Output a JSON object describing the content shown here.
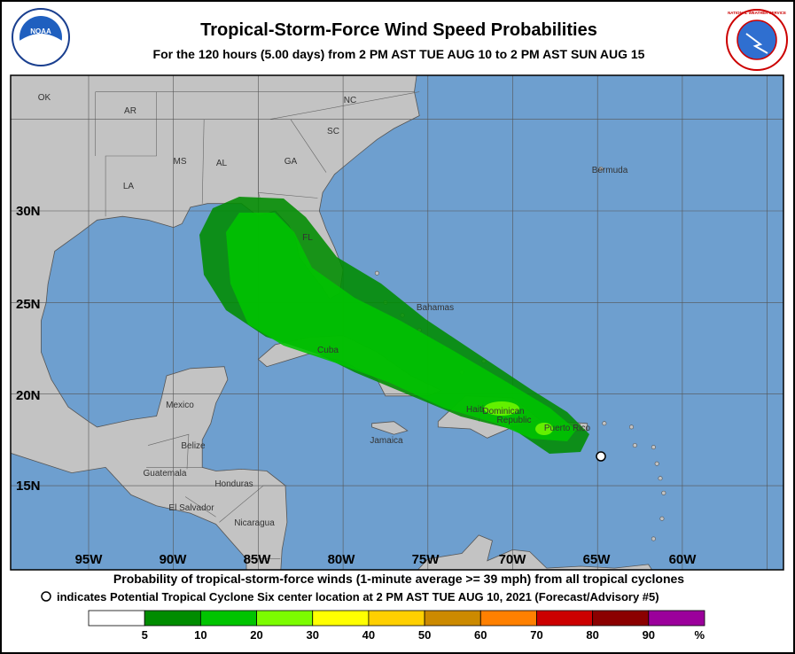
{
  "header": {
    "title": "Tropical-Storm-Force Wind Speed Probabilities",
    "subtitle": "For the 120 hours (5.00 days) from 2 PM AST TUE AUG 10 to 2 PM AST SUN AUG 15",
    "left_logo": "NOAA",
    "right_logo": "NATIONAL WEATHER SERVICE"
  },
  "map": {
    "latitude_labels": [
      "30N",
      "25N",
      "20N",
      "15N"
    ],
    "longitude_labels": [
      "95W",
      "90W",
      "85W",
      "80W",
      "75W",
      "70W",
      "65W",
      "60W"
    ],
    "place_labels": [
      "OK",
      "AR",
      "NC",
      "SC",
      "MS",
      "AL",
      "GA",
      "LA",
      "FL",
      "Bermuda",
      "Bahamas",
      "Cuba",
      "Mexico",
      "Haiti",
      "Dominican",
      "Republic",
      "Puerto Rico",
      "Jamaica",
      "Belize",
      "Guatemala",
      "Honduras",
      "El Salvador",
      "Nicaragua"
    ]
  },
  "caption": {
    "line1": "Probability of tropical-storm-force winds (1-minute average >= 39 mph) from all tropical cyclones",
    "line2": "indicates Potential Tropical Cyclone Six center location at 2 PM AST TUE AUG 10, 2021 (Forecast/Advisory #5)"
  },
  "legend": {
    "items": [
      {
        "color": "#ffffff",
        "label": "5"
      },
      {
        "color": "#008c00",
        "label": "10"
      },
      {
        "color": "#00c400",
        "label": "20"
      },
      {
        "color": "#7cfc00",
        "label": "30"
      },
      {
        "color": "#ffff00",
        "label": "40"
      },
      {
        "color": "#ffd000",
        "label": "50"
      },
      {
        "color": "#cc8a00",
        "label": "60"
      },
      {
        "color": "#ff8000",
        "label": "70"
      },
      {
        "color": "#cc0000",
        "label": "80"
      },
      {
        "color": "#8b0000",
        "label": "90"
      },
      {
        "color": "#9b009b",
        "label": "%"
      }
    ]
  }
}
